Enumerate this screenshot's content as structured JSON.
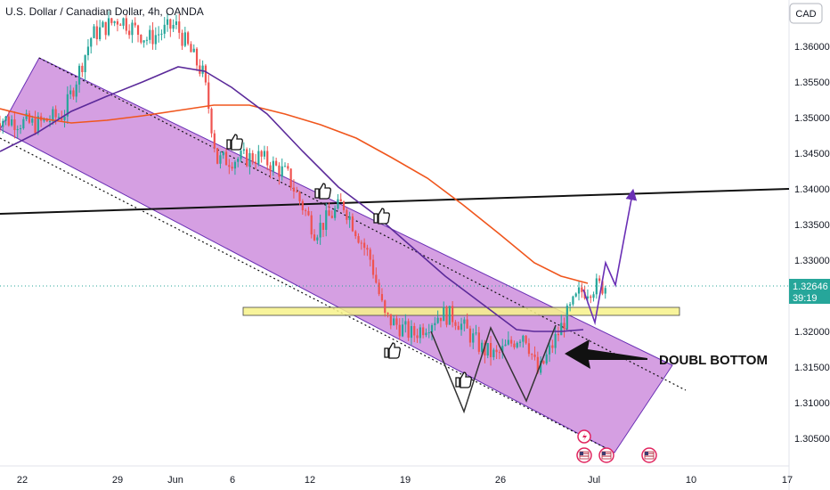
{
  "header": {
    "title": "U.S. Dollar / Canadian Dollar, 4h, OANDA",
    "currency_button": "CAD"
  },
  "price_axis": {
    "ticks": [
      "1.36000",
      "1.35500",
      "1.35000",
      "1.34500",
      "1.34000",
      "1.33500",
      "1.33000",
      "1.32500",
      "1.32000",
      "1.31500",
      "1.31000",
      "1.30500"
    ],
    "current_price": "1.32646",
    "countdown": "39:19"
  },
  "time_axis": {
    "ticks": [
      "22",
      "29",
      "Jun",
      "6",
      "12",
      "19",
      "26",
      "Jul",
      "10",
      "17"
    ]
  },
  "annotations": {
    "double_bottom": "DOUBL BOTTOM"
  },
  "colors": {
    "bull_candle": "#26a69a",
    "bear_candle": "#ef5350",
    "channel_fill": "#c77fd8",
    "ma_slow": "#f0561d",
    "ma_fast": "#5b2a9a",
    "projection": "#6a2fb5",
    "support_zone": "#f7f28a",
    "price_label_bg": "#26a69a"
  },
  "chart_data": {
    "type": "candlestick",
    "symbol": "USDCAD",
    "timeframe": "4h",
    "ylim": [
      1.3025,
      1.3655
    ],
    "x_start": "2023-05-19",
    "x_end": "2023-07-18",
    "close_series": [
      [
        "2023-05-19",
        1.35
      ],
      [
        "2023-05-22",
        1.349
      ],
      [
        "2023-05-24",
        1.3505
      ],
      [
        "2023-05-26",
        1.3615
      ],
      [
        "2023-05-28",
        1.364
      ],
      [
        "2023-05-30",
        1.361
      ],
      [
        "2023-06-01",
        1.363
      ],
      [
        "2023-06-03",
        1.356
      ],
      [
        "2023-06-04",
        1.344
      ],
      [
        "2023-06-07",
        1.3445
      ],
      [
        "2023-06-09",
        1.342
      ],
      [
        "2023-06-11",
        1.334
      ],
      [
        "2023-06-13",
        1.338
      ],
      [
        "2023-06-15",
        1.33
      ],
      [
        "2023-06-16",
        1.322
      ],
      [
        "2023-06-18",
        1.3195
      ],
      [
        "2023-06-20",
        1.3225
      ],
      [
        "2023-06-21",
        1.322
      ],
      [
        "2023-06-23",
        1.3175
      ],
      [
        "2023-06-24",
        1.3165
      ],
      [
        "2023-06-26",
        1.32
      ],
      [
        "2023-06-27",
        1.314
      ],
      [
        "2023-06-29",
        1.322
      ],
      [
        "2023-06-30",
        1.3255
      ],
      [
        "2023-07-01",
        1.3263
      ],
      [
        "2023-07-02",
        1.3264
      ]
    ],
    "channel": {
      "upper": [
        [
          "2023-05-19",
          1.3615
        ],
        [
          "2023-07-06",
          1.311
        ]
      ],
      "lower": [
        [
          "2023-05-19",
          1.3483
        ],
        [
          "2023-07-05",
          1.3035
        ]
      ]
    },
    "horizontal_line": 1.3395,
    "support_zone": [
      1.3228,
      1.3218
    ],
    "projection": [
      [
        "2023-07-01",
        1.3262
      ],
      [
        "2023-07-02",
        1.3215
      ],
      [
        "2023-07-03",
        1.3292
      ],
      [
        "2023-07-04",
        1.3265
      ],
      [
        "2023-07-05",
        1.339
      ]
    ],
    "double_bottom": [
      [
        "2023-06-19",
        1.32
      ],
      [
        "2023-06-23",
        1.3085
      ],
      [
        "2023-06-26",
        1.3175
      ],
      [
        "2023-06-28",
        1.3105
      ],
      [
        "2023-06-30",
        1.3207
      ]
    ]
  }
}
